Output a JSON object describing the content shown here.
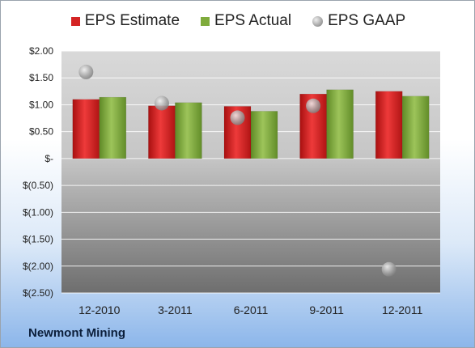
{
  "chart_data": {
    "type": "bar",
    "title": "",
    "xlabel": "",
    "ylabel": "",
    "categories": [
      "12-2010",
      "3-2011",
      "6-2011",
      "9-2011",
      "12-2011"
    ],
    "series": [
      {
        "name": "EPS Estimate",
        "kind": "bar",
        "values": [
          1.1,
          0.98,
          0.97,
          1.2,
          1.25
        ],
        "color": "#d42424"
      },
      {
        "name": "EPS Actual",
        "kind": "bar",
        "values": [
          1.14,
          1.04,
          0.88,
          1.28,
          1.16
        ],
        "color": "#7fab3c"
      },
      {
        "name": "EPS GAAP",
        "kind": "scatter",
        "values": [
          1.61,
          1.03,
          0.76,
          0.98,
          -2.06
        ],
        "color": "#9a9a9a"
      }
    ],
    "yticks": [
      "$2.00",
      "$1.50",
      "$1.00",
      "$0.50",
      "$-",
      "$(0.50)",
      "$(1.00)",
      "$(1.50)",
      "$(2.00)",
      "$(2.50)"
    ],
    "ylim": [
      -2.5,
      2.0
    ],
    "grid": true,
    "legend": "top"
  },
  "company": "Newmont Mining"
}
